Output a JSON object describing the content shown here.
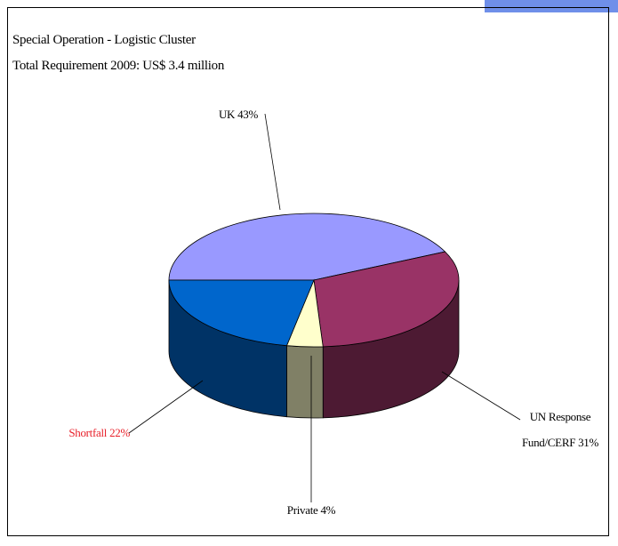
{
  "chart_data": {
    "type": "pie",
    "title": "Special Operation - Logistic Cluster",
    "subtitle": "Total Requirement 2009: US$ 3.4 million",
    "categories": [
      "UK",
      "UN Response Fund/CERF",
      "Private",
      "Shortfall"
    ],
    "values": [
      43,
      31,
      4,
      22
    ],
    "value_labels": [
      "43%",
      "31%",
      "4%",
      "22%"
    ],
    "colors": [
      "#9999ff",
      "#993366",
      "#ffffcc",
      "#0066cc"
    ],
    "side_colors": [
      "#4d4d80",
      "#4d1a33",
      "#808066",
      "#003366"
    ]
  }
}
